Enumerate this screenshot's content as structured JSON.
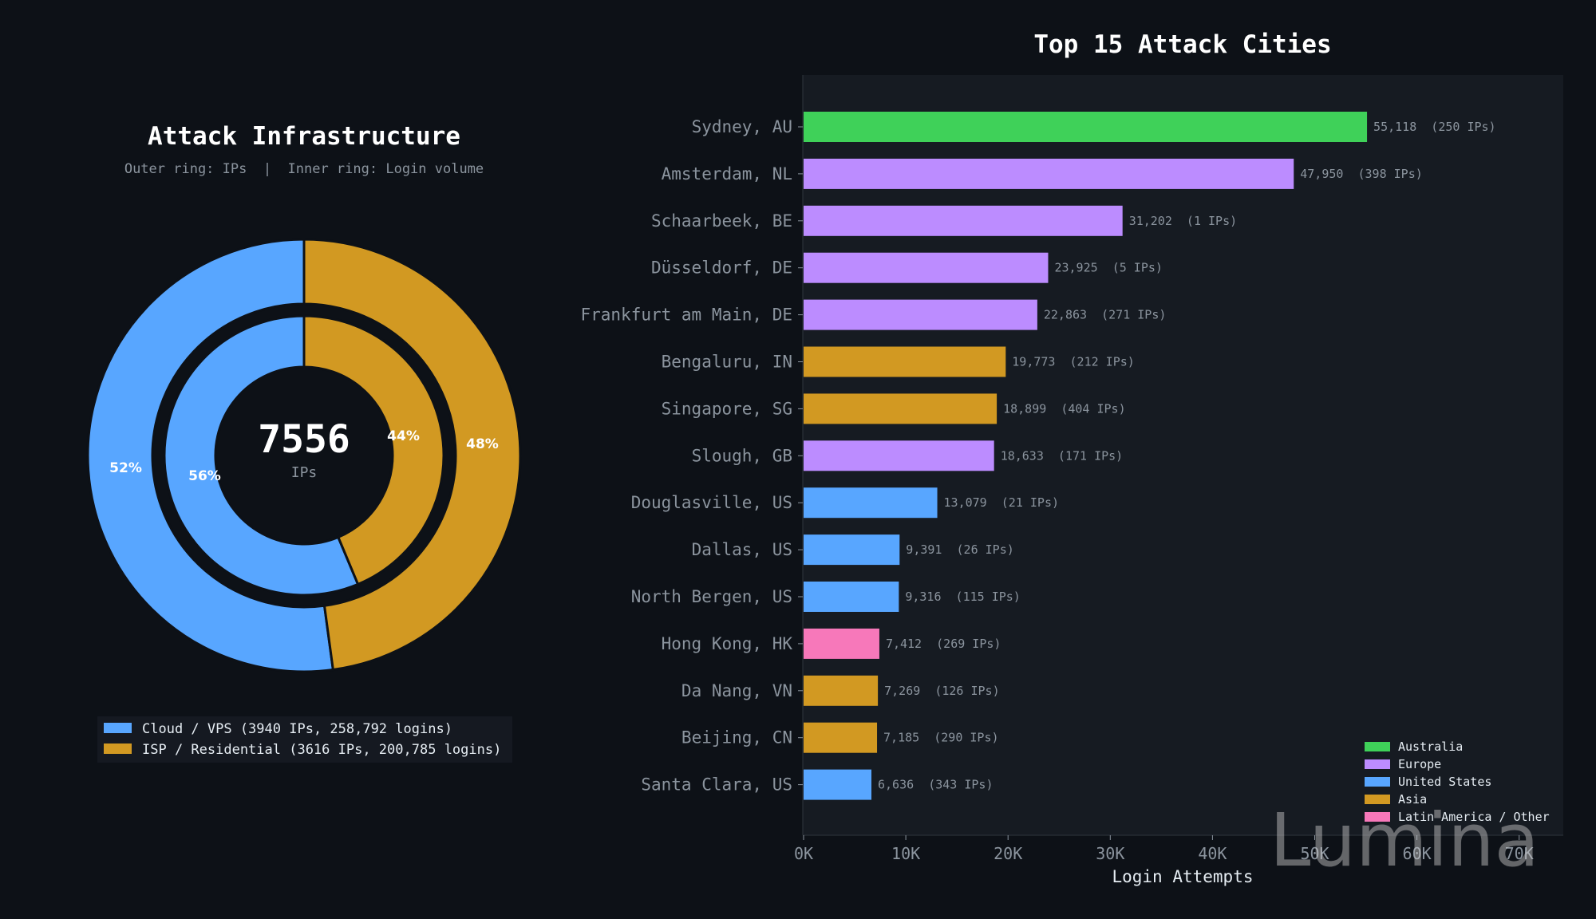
{
  "chart_data": [
    {
      "type": "pie",
      "title": "Attack Infrastructure",
      "subtitle": "Outer ring: IPs  |  Inner ring: Login volume",
      "center_value": "7556",
      "center_label": "IPs",
      "outer_ring": {
        "slices": [
          {
            "label": "Cloud / VPS",
            "value": 3940,
            "pct_label": "52%",
            "color": "#58a6ff"
          },
          {
            "label": "ISP / Residential",
            "value": 3616,
            "pct_label": "48%",
            "color": "#d29922"
          }
        ]
      },
      "inner_ring": {
        "slices": [
          {
            "label": "Cloud / VPS",
            "value": 258792,
            "pct_label": "56%",
            "color": "#58a6ff"
          },
          {
            "label": "ISP / Residential",
            "value": 200785,
            "pct_label": "44%",
            "color": "#d29922"
          }
        ]
      },
      "legend": [
        {
          "text": "Cloud / VPS (3940 IPs, 258,792 logins)",
          "color": "#58a6ff"
        },
        {
          "text": "ISP / Residential (3616 IPs, 200,785 logins)",
          "color": "#d29922"
        }
      ]
    },
    {
      "type": "bar",
      "orientation": "horizontal",
      "title": "Top 15 Attack Cities",
      "xlabel": "Login Attempts",
      "xlim": [
        0,
        75000
      ],
      "xticks": [
        {
          "value": 0,
          "label": "0K"
        },
        {
          "value": 10000,
          "label": "10K"
        },
        {
          "value": 20000,
          "label": "20K"
        },
        {
          "value": 30000,
          "label": "30K"
        },
        {
          "value": 40000,
          "label": "40K"
        },
        {
          "value": 50000,
          "label": "50K"
        },
        {
          "value": 60000,
          "label": "60K"
        },
        {
          "value": 70000,
          "label": "70K"
        }
      ],
      "bars": [
        {
          "city": "Sydney, AU",
          "value": 55118,
          "label": "55,118  (250 IPs)",
          "region": "Australia"
        },
        {
          "city": "Amsterdam, NL",
          "value": 47950,
          "label": "47,950  (398 IPs)",
          "region": "Europe"
        },
        {
          "city": "Schaarbeek, BE",
          "value": 31202,
          "label": "31,202  (1 IPs)",
          "region": "Europe"
        },
        {
          "city": "Düsseldorf, DE",
          "value": 23925,
          "label": "23,925  (5 IPs)",
          "region": "Europe"
        },
        {
          "city": "Frankfurt am Main, DE",
          "value": 22863,
          "label": "22,863  (271 IPs)",
          "region": "Europe"
        },
        {
          "city": "Bengaluru, IN",
          "value": 19773,
          "label": "19,773  (212 IPs)",
          "region": "Asia"
        },
        {
          "city": "Singapore, SG",
          "value": 18899,
          "label": "18,899  (404 IPs)",
          "region": "Asia"
        },
        {
          "city": "Slough, GB",
          "value": 18633,
          "label": "18,633  (171 IPs)",
          "region": "Europe"
        },
        {
          "city": "Douglasville, US",
          "value": 13079,
          "label": "13,079  (21 IPs)",
          "region": "United States"
        },
        {
          "city": "Dallas, US",
          "value": 9391,
          "label": "9,391  (26 IPs)",
          "region": "United States"
        },
        {
          "city": "North Bergen, US",
          "value": 9316,
          "label": "9,316  (115 IPs)",
          "region": "United States"
        },
        {
          "city": "Hong Kong, HK",
          "value": 7412,
          "label": "7,412  (269 IPs)",
          "region": "Latin America / Other"
        },
        {
          "city": "Da Nang, VN",
          "value": 7269,
          "label": "7,269  (126 IPs)",
          "region": "Asia"
        },
        {
          "city": "Beijing, CN",
          "value": 7185,
          "label": "7,185  (290 IPs)",
          "region": "Asia"
        },
        {
          "city": "Santa Clara, US",
          "value": 6636,
          "label": "6,636  (343 IPs)",
          "region": "United States"
        }
      ],
      "legend": [
        {
          "name": "Australia",
          "color": "#3fd159"
        },
        {
          "name": "Europe",
          "color": "#bc8cff"
        },
        {
          "name": "United States",
          "color": "#58a6ff"
        },
        {
          "name": "Asia",
          "color": "#d29922"
        },
        {
          "name": "Latin America / Other",
          "color": "#f778ba"
        }
      ],
      "legend_placement": "bottom-right",
      "grid": false
    }
  ],
  "watermark": "Lumina"
}
